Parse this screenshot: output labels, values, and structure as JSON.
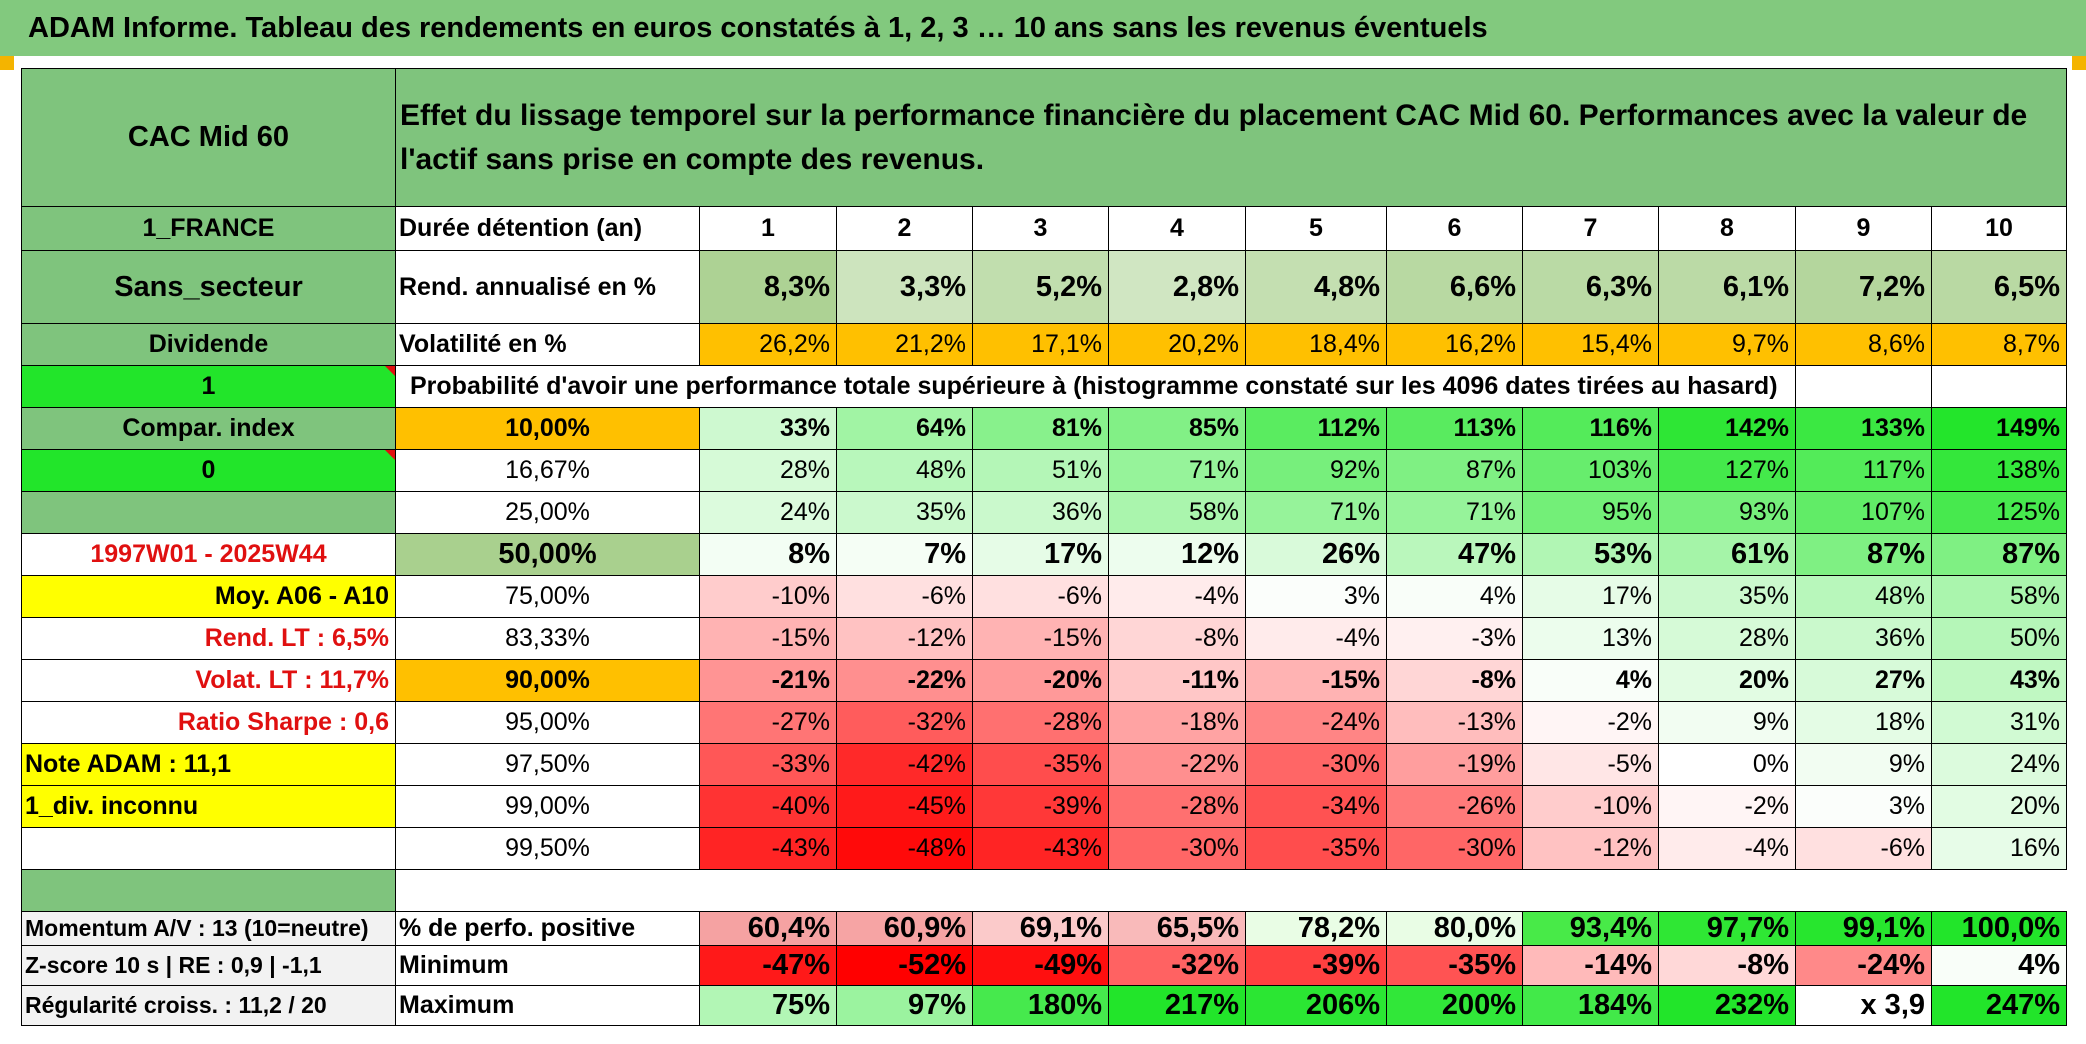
{
  "title": "ADAM Informe. Tableau des rendements en euros constatés à 1, 2, 3 … 10 ans sans les revenus éventuels",
  "header": {
    "name": "CAC Mid 60",
    "description": "Effet du lissage temporel sur la performance financière du placement CAC Mid 60. Performances avec la valeur de l'actif sans prise en compte des revenus."
  },
  "left_labels": {
    "country": "1_FRANCE",
    "sector": "Sans_secteur",
    "dividend": "Dividende",
    "one": "1",
    "compar": "Compar. index",
    "zero": "0",
    "period": "1997W01 - 2025W44",
    "moy": "Moy. A06 - A10",
    "rend_lt": "Rend. LT :   6,5%",
    "volat_lt": "Volat. LT :   11,7%",
    "sharpe": "Ratio Sharpe :   0,6",
    "note": "Note ADAM : 11,1",
    "div": "1_div. inconnu",
    "momentum": "Momentum A/V : 13 (10=neutre)",
    "zscore": "Z-score 10 s | RE : 0,9 | -1,1",
    "regularite": "Régularité croiss. : 11,2 / 20"
  },
  "row_labels": {
    "duree": "Durée détention (an)",
    "rend": "Rend. annualisé en %",
    "vol": "Volatilité en %",
    "proba": "Probabilité d'avoir une performance totale supérieure à (histogramme constaté sur les 4096 dates tirées au hasard)",
    "positive": "% de perfo. positive",
    "minimum": "Minimum",
    "maximum": "Maximum"
  },
  "years": [
    "1",
    "2",
    "3",
    "4",
    "5",
    "6",
    "7",
    "8",
    "9",
    "10"
  ],
  "rend": [
    "8,3%",
    "3,3%",
    "5,2%",
    "2,8%",
    "4,8%",
    "6,6%",
    "6,3%",
    "6,1%",
    "7,2%",
    "6,5%"
  ],
  "vol": [
    "26,2%",
    "21,2%",
    "17,1%",
    "20,2%",
    "18,4%",
    "16,2%",
    "15,4%",
    "9,7%",
    "8,6%",
    "8,7%"
  ],
  "prob_rows": [
    {
      "p": "10,00%",
      "v": [
        "33%",
        "64%",
        "81%",
        "85%",
        "112%",
        "113%",
        "116%",
        "142%",
        "133%",
        "149%"
      ]
    },
    {
      "p": "16,67%",
      "v": [
        "28%",
        "48%",
        "51%",
        "71%",
        "92%",
        "87%",
        "103%",
        "127%",
        "117%",
        "138%"
      ]
    },
    {
      "p": "25,00%",
      "v": [
        "24%",
        "35%",
        "36%",
        "58%",
        "71%",
        "71%",
        "95%",
        "93%",
        "107%",
        "125%"
      ]
    },
    {
      "p": "50,00%",
      "v": [
        "8%",
        "7%",
        "17%",
        "12%",
        "26%",
        "47%",
        "53%",
        "61%",
        "87%",
        "87%"
      ]
    },
    {
      "p": "75,00%",
      "v": [
        "-10%",
        "-6%",
        "-6%",
        "-4%",
        "3%",
        "4%",
        "17%",
        "35%",
        "48%",
        "58%"
      ]
    },
    {
      "p": "83,33%",
      "v": [
        "-15%",
        "-12%",
        "-15%",
        "-8%",
        "-4%",
        "-3%",
        "13%",
        "28%",
        "36%",
        "50%"
      ]
    },
    {
      "p": "90,00%",
      "v": [
        "-21%",
        "-22%",
        "-20%",
        "-11%",
        "-15%",
        "-8%",
        "4%",
        "20%",
        "27%",
        "43%"
      ]
    },
    {
      "p": "95,00%",
      "v": [
        "-27%",
        "-32%",
        "-28%",
        "-18%",
        "-24%",
        "-13%",
        "-2%",
        "9%",
        "18%",
        "31%"
      ]
    },
    {
      "p": "97,50%",
      "v": [
        "-33%",
        "-42%",
        "-35%",
        "-22%",
        "-30%",
        "-19%",
        "-5%",
        "0%",
        "9%",
        "24%"
      ]
    },
    {
      "p": "99,00%",
      "v": [
        "-40%",
        "-45%",
        "-39%",
        "-28%",
        "-34%",
        "-26%",
        "-10%",
        "-2%",
        "3%",
        "20%"
      ]
    },
    {
      "p": "99,50%",
      "v": [
        "-43%",
        "-48%",
        "-43%",
        "-30%",
        "-35%",
        "-30%",
        "-12%",
        "-4%",
        "-6%",
        "16%"
      ]
    }
  ],
  "positive": [
    "60,4%",
    "60,9%",
    "69,1%",
    "65,5%",
    "78,2%",
    "80,0%",
    "93,4%",
    "97,7%",
    "99,1%",
    "100,0%"
  ],
  "minimum": [
    "-47%",
    "-52%",
    "-49%",
    "-32%",
    "-39%",
    "-35%",
    "-14%",
    "-8%",
    "-24%",
    "4%"
  ],
  "maximum": [
    "75%",
    "97%",
    "180%",
    "217%",
    "206%",
    "200%",
    "184%",
    "232%",
    "x 3,9",
    "247%"
  ],
  "colors": {
    "banner_green": "#82c97e",
    "label_green": "#7fc47d",
    "bright_green": "#22e52a",
    "yellow": "#ffff00",
    "orange": "#ffc000",
    "label_red": "#e01010",
    "light_green_rend": "#c6e0b4"
  }
}
